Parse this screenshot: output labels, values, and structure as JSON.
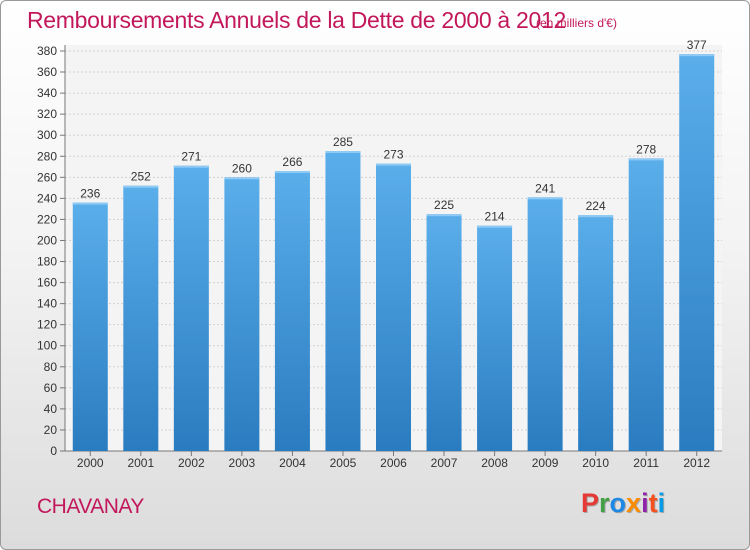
{
  "header": {
    "title": "Remboursements Annuels de la Dette de 2000 à 2012",
    "subtitle": "(en milliers d'€)"
  },
  "footer": {
    "town": "CHAVANAY",
    "logo": "Proxiti",
    "logo_colors": [
      "#e53935",
      "#43a047",
      "#1e88e5",
      "#fb8c00",
      "#8e24aa",
      "#f4511e",
      "#039be5"
    ]
  },
  "chart_data": {
    "type": "bar",
    "title": "Remboursements Annuels de la Dette de 2000 à 2012",
    "subtitle": "(en milliers d'€)",
    "categories": [
      "2000",
      "2001",
      "2002",
      "2003",
      "2004",
      "2005",
      "2006",
      "2007",
      "2008",
      "2009",
      "2010",
      "2011",
      "2012"
    ],
    "values": [
      236,
      252,
      271,
      260,
      266,
      285,
      273,
      225,
      214,
      241,
      224,
      278,
      377
    ],
    "ylim": [
      0,
      380
    ],
    "ytick_step": 20,
    "grid": true,
    "bar_color_top": "#5aaeea",
    "bar_color_bottom": "#2a7cc0"
  }
}
